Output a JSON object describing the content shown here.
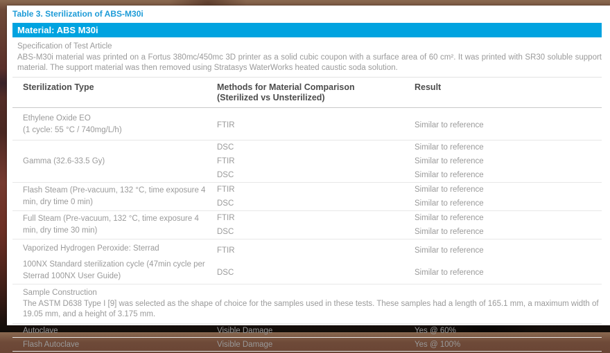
{
  "page": {
    "caption": "Table 3. Sterilization of ABS-M30i",
    "material_header": "Material: ABS M30i",
    "accent_color": "#00a3e0",
    "caption_color": "#1d9bd7"
  },
  "spec": {
    "heading": "Specification of Test Article",
    "body": "ABS-M30i material was printed on a Fortus 380mc/450mc 3D printer as a solid cubic coupon with a surface area of 60 cm². It was printed with SR30 soluble support material. The support material was then removed using Stratasys WaterWorks heated caustic soda solution."
  },
  "table": {
    "header": {
      "col1": "Sterilization Type",
      "col2_line1": "Methods for Material Comparison",
      "col2_line2": "(Sterilized vs Unsterilized)",
      "col3": "Result"
    },
    "groups": [
      {
        "type_lines": [
          "Ethylene Oxide EO",
          "(1 cycle: 55 °C / 740mg/L/h)"
        ],
        "rows": [
          {
            "method": "FTIR",
            "result": "Similar to reference"
          }
        ]
      },
      {
        "type_lines": [
          "Gamma (32.6-33.5 Gy)"
        ],
        "rows": [
          {
            "method": "DSC",
            "result": "Similar to reference"
          },
          {
            "method": "FTIR",
            "result": "Similar to reference"
          },
          {
            "method": "DSC",
            "result": "Similar to reference"
          }
        ]
      },
      {
        "type_lines": [
          "Flash Steam (Pre-vacuum, 132 °C, time exposure 4 min, dry time 0 min)"
        ],
        "rows": [
          {
            "method": "FTIR",
            "result": "Similar to reference"
          },
          {
            "method": "DSC",
            "result": "Similar to reference"
          }
        ]
      },
      {
        "type_lines": [
          "Full Steam (Pre-vacuum, 132 °C, time exposure 4 min, dry time 30 min)"
        ],
        "rows": [
          {
            "method": "FTIR",
            "result": "Similar to reference"
          },
          {
            "method": "DSC",
            "result": "Similar to reference"
          }
        ]
      },
      {
        "type_lines": [
          "Vaporized Hydrogen Peroxide: Sterrad",
          "100NX Standard sterilization cycle (47min cycle per Sterrad 100NX User Guide)"
        ],
        "rows": [
          {
            "method": "FTIR",
            "result": "Similar to reference"
          },
          {
            "method": "DSC",
            "result": "Similar to reference"
          }
        ]
      }
    ]
  },
  "sample_construction": {
    "heading": "Sample Construction",
    "body": "The ASTM D638 Type I [9] was selected as the shape of choice for the samples used in these tests. These samples had a length of 165.1 mm, a maximum width of 19.05 mm, and a height of 3.175 mm."
  },
  "damage_rows": [
    {
      "type": "Autoclave",
      "method": "Visible Damage",
      "result": "Yes @ 60%"
    },
    {
      "type": "Flash Autoclave",
      "method": "Visible Damage",
      "result": "Yes @ 100%"
    }
  ]
}
